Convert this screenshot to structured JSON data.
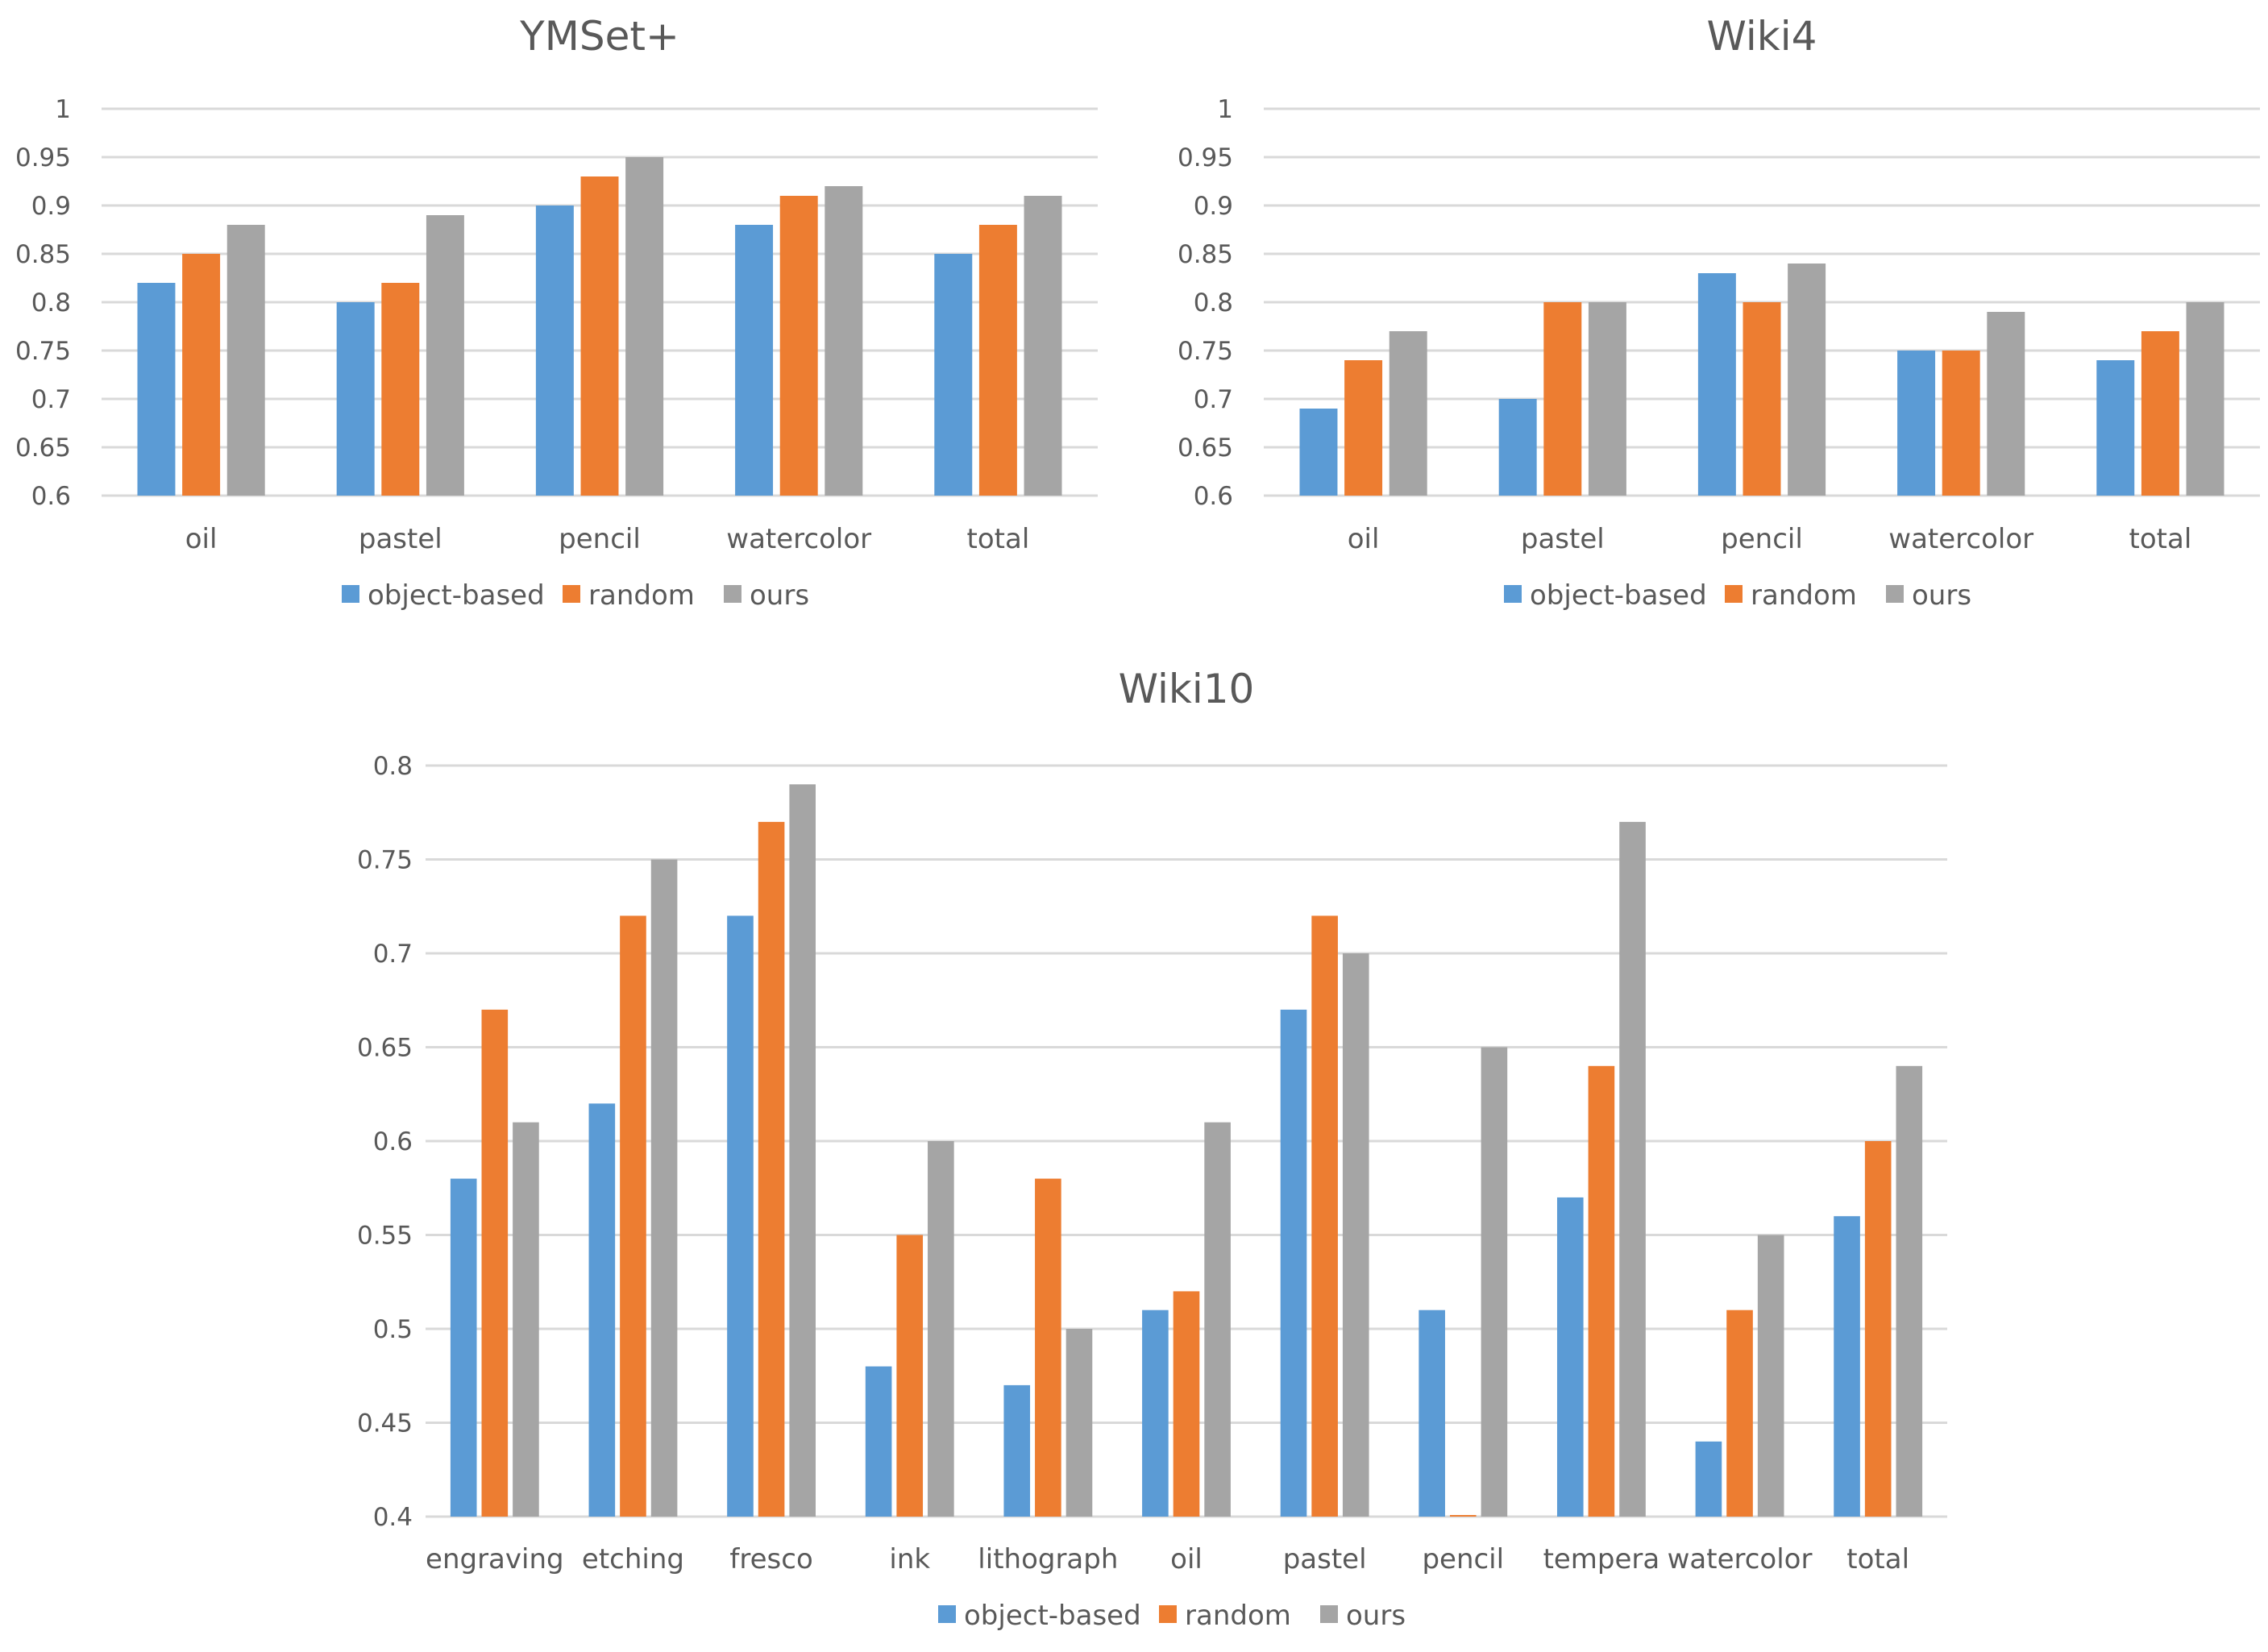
{
  "legend": [
    "object-based",
    "random",
    "ours"
  ],
  "colors": [
    "#5b9bd5",
    "#ed7d31",
    "#a5a5a5"
  ],
  "chart_data": [
    {
      "type": "bar",
      "title": "YMSet+",
      "categories": [
        "oil",
        "pastel",
        "pencil",
        "watercolor",
        "total"
      ],
      "series": [
        {
          "name": "object-based",
          "values": [
            0.82,
            0.8,
            0.9,
            0.88,
            0.85
          ]
        },
        {
          "name": "random",
          "values": [
            0.85,
            0.82,
            0.93,
            0.91,
            0.88
          ]
        },
        {
          "name": "ours",
          "values": [
            0.88,
            0.89,
            0.95,
            0.92,
            0.91
          ]
        }
      ],
      "ylim": [
        0.6,
        1
      ],
      "yticks": [
        "0.6",
        "0.65",
        "0.7",
        "0.75",
        "0.8",
        "0.85",
        "0.9",
        "0.95",
        "1"
      ],
      "xlabel": "",
      "ylabel": "",
      "legend_position": "bottom"
    },
    {
      "type": "bar",
      "title": "Wiki4",
      "categories": [
        "oil",
        "pastel",
        "pencil",
        "watercolor",
        "total"
      ],
      "series": [
        {
          "name": "object-based",
          "values": [
            0.69,
            0.7,
            0.83,
            0.75,
            0.74
          ]
        },
        {
          "name": "random",
          "values": [
            0.74,
            0.8,
            0.8,
            0.75,
            0.77
          ]
        },
        {
          "name": "ours",
          "values": [
            0.77,
            0.8,
            0.84,
            0.79,
            0.8
          ]
        }
      ],
      "ylim": [
        0.6,
        1
      ],
      "yticks": [
        "0.6",
        "0.65",
        "0.7",
        "0.75",
        "0.8",
        "0.85",
        "0.9",
        "0.95",
        "1"
      ],
      "xlabel": "",
      "ylabel": "",
      "legend_position": "bottom"
    },
    {
      "type": "bar",
      "title": "Wiki10",
      "categories": [
        "engraving",
        "etching",
        "fresco",
        "ink",
        "lithograph",
        "oil",
        "pastel",
        "pencil",
        "tempera",
        "watercolor",
        "total"
      ],
      "series": [
        {
          "name": "object-based",
          "values": [
            0.58,
            0.62,
            0.72,
            0.48,
            0.47,
            0.51,
            0.67,
            0.51,
            0.57,
            0.44,
            0.56
          ]
        },
        {
          "name": "random",
          "values": [
            0.67,
            0.72,
            0.77,
            0.55,
            0.58,
            0.52,
            0.72,
            0.4,
            0.64,
            0.51,
            0.6
          ]
        },
        {
          "name": "ours",
          "values": [
            0.61,
            0.75,
            0.79,
            0.6,
            0.5,
            0.61,
            0.7,
            0.65,
            0.77,
            0.55,
            0.64
          ]
        }
      ],
      "ylim": [
        0.4,
        0.8
      ],
      "yticks": [
        "0.4",
        "0.45",
        "0.5",
        "0.55",
        "0.6",
        "0.65",
        "0.7",
        "0.75",
        "0.8"
      ],
      "xlabel": "",
      "ylabel": "",
      "legend_position": "bottom"
    }
  ]
}
